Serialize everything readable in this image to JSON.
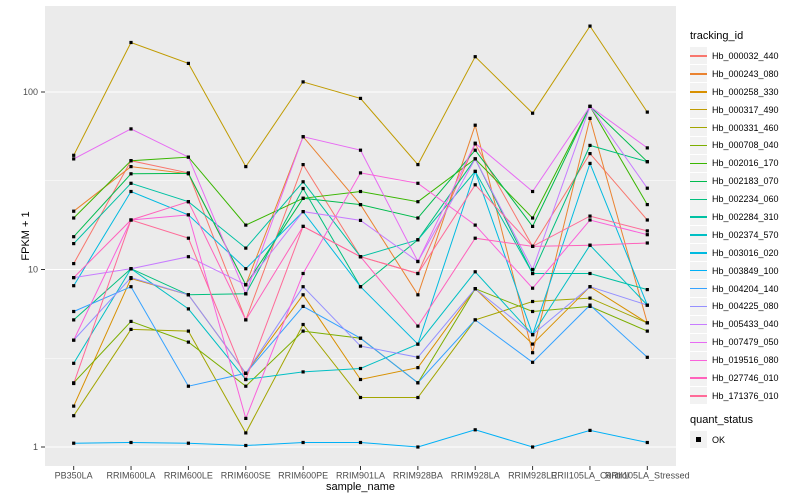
{
  "chart_data": {
    "type": "line",
    "title": "",
    "xlabel": "sample_name",
    "ylabel": "FPKM + 1",
    "y_scale": "log10",
    "y_ticks": [
      "1",
      "10",
      "100"
    ],
    "ylim": [
      0.8,
      300
    ],
    "grid": "white major gridlines at 1,10,100 and minor at half-decades on grey panel",
    "legend_position": "right",
    "point_marker": "black filled square (quant_status OK) at every data point",
    "categories": [
      "PB350LA",
      "RRIM600LA",
      "RRIM600LE",
      "RRIM600SE",
      "RRIM600PE",
      "RRIM901LA",
      "RRIM928BA",
      "RRIM928LA",
      "RRIM928LE",
      "RRII105LA_Control",
      "RRII105LA_Stressed"
    ],
    "series": [
      {
        "name": "Hb_000032_440",
        "color": "#F8766D",
        "values": [
          10.8,
          41,
          35,
          5.2,
          39,
          11.8,
          9.5,
          51,
          13.5,
          45,
          19
        ]
      },
      {
        "name": "Hb_000243_080",
        "color": "#EA8331",
        "values": [
          21.3,
          38,
          34.6,
          8.2,
          56,
          23.2,
          7.2,
          65,
          3.4,
          71,
          5.0
        ]
      },
      {
        "name": "Hb_000258_330",
        "color": "#D89000",
        "values": [
          1.7,
          8.9,
          7.2,
          2.6,
          7.2,
          2.4,
          2.8,
          7.8,
          3.8,
          8.0,
          5.0
        ]
      },
      {
        "name": "Hb_000317_490",
        "color": "#C09B00",
        "values": [
          44,
          190,
          145,
          38,
          114,
          92,
          39,
          158,
          76,
          235,
          77
        ]
      },
      {
        "name": "Hb_000331_460",
        "color": "#A3A500",
        "values": [
          1.5,
          4.6,
          4.5,
          1.2,
          4.9,
          1.9,
          1.9,
          5.2,
          6.6,
          6.9,
          5.0
        ]
      },
      {
        "name": "Hb_000708_040",
        "color": "#7CAE00",
        "values": [
          2.3,
          5.1,
          3.9,
          2.2,
          4.5,
          4.1,
          2.3,
          7.8,
          5.8,
          6.2,
          4.5
        ]
      },
      {
        "name": "Hb_002016_170",
        "color": "#39B600",
        "values": [
          19.5,
          41,
          43,
          17.8,
          25.2,
          27.5,
          24.1,
          42,
          19.5,
          83,
          23.2
        ]
      },
      {
        "name": "Hb_002183_070",
        "color": "#00BB4E",
        "values": [
          15.3,
          34.6,
          34.8,
          8.2,
          25.2,
          23.2,
          19.5,
          47,
          17.5,
          83,
          40.5
        ]
      },
      {
        "name": "Hb_002234_060",
        "color": "#00BF7D",
        "values": [
          5.2,
          10.1,
          7.2,
          7.3,
          28.6,
          8.0,
          14.7,
          42,
          9.5,
          50,
          40.5
        ]
      },
      {
        "name": "Hb_002284_310",
        "color": "#00C1A3",
        "values": [
          14.0,
          30.6,
          24.1,
          13.2,
          31.2,
          11.8,
          14.7,
          35.7,
          9.5,
          9.5,
          7.7
        ]
      },
      {
        "name": "Hb_002374_570",
        "color": "#00BFC4",
        "values": [
          2.96,
          10.1,
          6.0,
          2.4,
          2.65,
          2.77,
          3.8,
          9.7,
          4.3,
          13.7,
          6.3
        ]
      },
      {
        "name": "Hb_003016_020",
        "color": "#00BAE0",
        "values": [
          8.1,
          27.5,
          20.3,
          10.1,
          21.2,
          8.0,
          3.8,
          35.7,
          4.3,
          39.6,
          6.3
        ]
      },
      {
        "name": "Hb_003849_100",
        "color": "#00B0F6",
        "values": [
          1.05,
          1.06,
          1.05,
          1.02,
          1.06,
          1.06,
          1.0,
          1.25,
          1.0,
          1.24,
          1.06
        ]
      },
      {
        "name": "Hb_004204_140",
        "color": "#35A2FF",
        "values": [
          5.8,
          8.0,
          2.2,
          2.6,
          6.2,
          4.1,
          2.3,
          5.2,
          3.0,
          6.3,
          3.2
        ]
      },
      {
        "name": "Hb_004225_080",
        "color": "#9590FF",
        "values": [
          4.0,
          9.0,
          7.2,
          2.6,
          8.0,
          3.7,
          3.2,
          7.8,
          4.3,
          8.0,
          6.3
        ]
      },
      {
        "name": "Hb_005433_040",
        "color": "#C77CFF",
        "values": [
          9.0,
          10.1,
          11.8,
          8.2,
          21.2,
          18.9,
          11.1,
          42,
          10.0,
          83,
          28.7
        ]
      },
      {
        "name": "Hb_007479_050",
        "color": "#E76BF3",
        "values": [
          42,
          62,
          43,
          7.3,
          56,
          47,
          11.1,
          51.5,
          27.5,
          83,
          48.4
        ]
      },
      {
        "name": "Hb_019516_080",
        "color": "#FA62DB",
        "values": [
          4.0,
          19.0,
          20.3,
          1.45,
          9.5,
          35,
          30.6,
          17.8,
          7.85,
          19.0,
          15.7
        ]
      },
      {
        "name": "Hb_027746_010",
        "color": "#FF62BC",
        "values": [
          9.0,
          19.0,
          24.1,
          5.2,
          17.5,
          11.8,
          4.8,
          15.0,
          13.5,
          13.7,
          14.1
        ]
      },
      {
        "name": "Hb_171376_010",
        "color": "#FF6A98",
        "values": [
          2.28,
          19.0,
          15.0,
          2.4,
          17.5,
          11.8,
          9.5,
          30,
          13.5,
          20,
          16.5
        ]
      }
    ],
    "legends": {
      "color_legend_title": "tracking_id",
      "shape_legend_title": "quant_status",
      "shape_legend_items": [
        {
          "label": "OK",
          "marker": "black-filled-square"
        }
      ]
    },
    "colors": {
      "panel_background": "#EBEBEB",
      "gridline": "#FFFFFF",
      "axis_text": "#4D4D4D",
      "tick_mark": "#333333",
      "title_text": "#000000",
      "point": "#000000",
      "legend_key_background": "#F2F2F2"
    }
  }
}
